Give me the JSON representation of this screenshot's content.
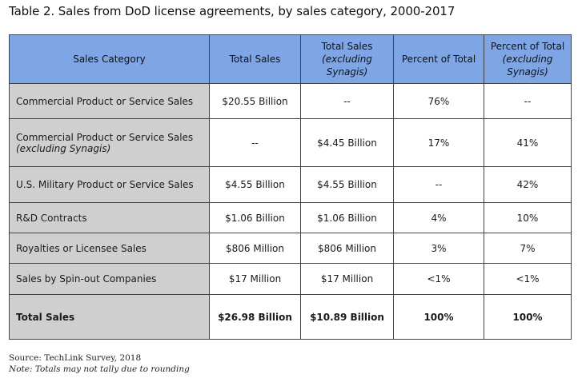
{
  "title": "Table 2. Sales from DoD license agreements, by sales category, 2000-2017",
  "headers": {
    "sales_category": "Sales Category",
    "total_sales": "Total Sales",
    "total_sales_excl": "Total Sales",
    "total_sales_excl_sub": "(excluding Synagis)",
    "percent_of_total": "Percent of Total",
    "percent_of_total_excl": "Percent of Total",
    "percent_of_total_excl_sub": "(excluding Synagis)"
  },
  "rows": [
    {
      "category": "Commercial Product or Service Sales",
      "category_sub": "",
      "total": "$20.55 Billion",
      "total_excl": "--",
      "pct": "76%",
      "pct_excl": "--"
    },
    {
      "category": "Commercial Product or Service Sales",
      "category_sub": "(excluding Synagis)",
      "total": "--",
      "total_excl": "$4.45 Billion",
      "pct": "17%",
      "pct_excl": "41%"
    },
    {
      "category": "U.S. Military Product or Service Sales",
      "category_sub": "",
      "total": "$4.55 Billion",
      "total_excl": "$4.55 Billion",
      "pct": "--",
      "pct_excl": "42%"
    },
    {
      "category": "R&D Contracts",
      "category_sub": "",
      "total": "$1.06 Billion",
      "total_excl": "$1.06 Billion",
      "pct": "4%",
      "pct_excl": "10%"
    },
    {
      "category": "Royalties or Licensee Sales",
      "category_sub": "",
      "total": "$806 Million",
      "total_excl": "$806 Million",
      "pct": "3%",
      "pct_excl": "7%"
    },
    {
      "category": "Sales by Spin-out Companies",
      "category_sub": "",
      "total": "$17 Million",
      "total_excl": "$17 Million",
      "pct": "<1%",
      "pct_excl": "<1%"
    }
  ],
  "total_row": {
    "category": "Total Sales",
    "total": "$26.98 Billion",
    "total_excl": "$10.89 Billion",
    "pct": "100%",
    "pct_excl": "100%"
  },
  "source": "Source:  TechLink Survey, 2018",
  "note": "Note: Totals may not tally due to rounding"
}
